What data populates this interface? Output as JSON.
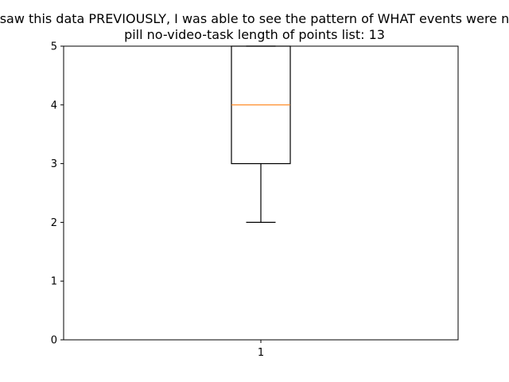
{
  "chart_data": {
    "type": "box",
    "title_lines": [
      "If I saw this data PREVIOUSLY, I was able to see the pattern of WHAT events were next",
      "pill    no-video-task    length of points list: 13"
    ],
    "xlabel": "",
    "ylabel": "",
    "categories": [
      "1"
    ],
    "ylim": [
      0,
      5
    ],
    "yticks": [
      0,
      1,
      2,
      3,
      4,
      5
    ],
    "boxes": [
      {
        "label": "1",
        "whisker_low": 2,
        "q1": 3,
        "median": 4,
        "q3": 5,
        "whisker_high": 5
      }
    ],
    "colors": {
      "box": "#000000",
      "median": "#ff7f0e",
      "axes": "#000000"
    },
    "grid": false,
    "legend": "none"
  }
}
